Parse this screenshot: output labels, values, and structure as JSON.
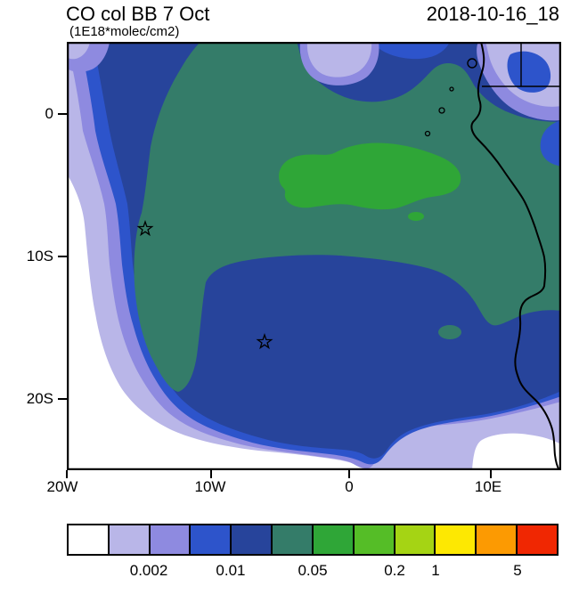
{
  "header": {
    "title": "CO col BB 7 Oct",
    "units": "(1E18*molec/cm2)",
    "datetime": "2018-10-16_18"
  },
  "axes": {
    "y_ticks": [
      "0",
      "10S",
      "20S"
    ],
    "x_ticks": [
      "20W",
      "10W",
      "0",
      "10E"
    ]
  },
  "palette": {
    "white": "#ffffff",
    "lavender": "#b9b6e8",
    "periwinkle": "#8e8ae0",
    "blue": "#2d54cb",
    "navy": "#27449b",
    "teal": "#347c69",
    "green": "#2fa637",
    "light_green": "#55bd27",
    "yellow_green": "#a5d414",
    "yellow": "#fde802",
    "orange": "#fc9a02",
    "red": "#f02702"
  },
  "colorbar": {
    "colors": [
      "#ffffff",
      "#b9b6e8",
      "#8e8ae0",
      "#2d54cb",
      "#27449b",
      "#347c69",
      "#2fa637",
      "#55bd27",
      "#a5d414",
      "#fde802",
      "#fc9a02",
      "#f02702"
    ],
    "ticks": [
      {
        "label": "0.002",
        "pos_pct": 16.67
      },
      {
        "label": "0.01",
        "pos_pct": 33.33
      },
      {
        "label": "0.05",
        "pos_pct": 50.0
      },
      {
        "label": "0.2",
        "pos_pct": 66.67
      },
      {
        "label": "1",
        "pos_pct": 75.0
      },
      {
        "label": "5",
        "pos_pct": 91.67
      }
    ]
  },
  "chart_data": {
    "type": "heatmap",
    "title": "CO col BB 7 Oct",
    "subtitle": "(1E18*molec/cm2)",
    "timestamp": "2018-10-16_18",
    "description": "Filled-contour lat/lon map of biomass-burning CO column over the South Atlantic and western/southern Africa; African coastline drawn in black on the east side.",
    "lon_range": [
      "20W",
      "15E"
    ],
    "lat_range": [
      "5N",
      "25S"
    ],
    "x_tick_labels": [
      "20W",
      "10W",
      "0",
      "10E"
    ],
    "y_tick_labels": [
      "0",
      "10S",
      "20S"
    ],
    "units": "1E18 molec/cm2",
    "contour_levels": [
      0.001,
      0.002,
      0.005,
      0.01,
      0.02,
      0.05,
      0.1,
      0.2,
      1,
      2,
      5
    ],
    "colorbar_tick_labels": [
      "0.002",
      "0.01",
      "0.05",
      "0.2",
      "1",
      "5"
    ],
    "palette_order": [
      "white",
      "lavender",
      "periwinkle",
      "blue",
      "navy",
      "teal",
      "green",
      "light_green",
      "yellow_green",
      "yellow",
      "orange",
      "red"
    ],
    "features": [
      "background < 0.002 in the southwest corner and along the southern edge",
      "broad 0.02-0.05 plume (dark blue) covering most of the basin",
      "0.05-0.1 region (dark sea green) over the tropical basin and equatorial Africa with a southward tongue near 11W",
      "enhanced core 0.1-0.2 (green) centered near 2W-8E, 3S-7S",
      "low-CO pockets (lavender) at map top-left, top-center and over the northeast corner land area"
    ],
    "markers": [
      {
        "symbol": "star",
        "lon": "14.4W",
        "lat": "8S"
      },
      {
        "symbol": "star",
        "lon": "5.9W",
        "lat": "16S"
      }
    ]
  }
}
